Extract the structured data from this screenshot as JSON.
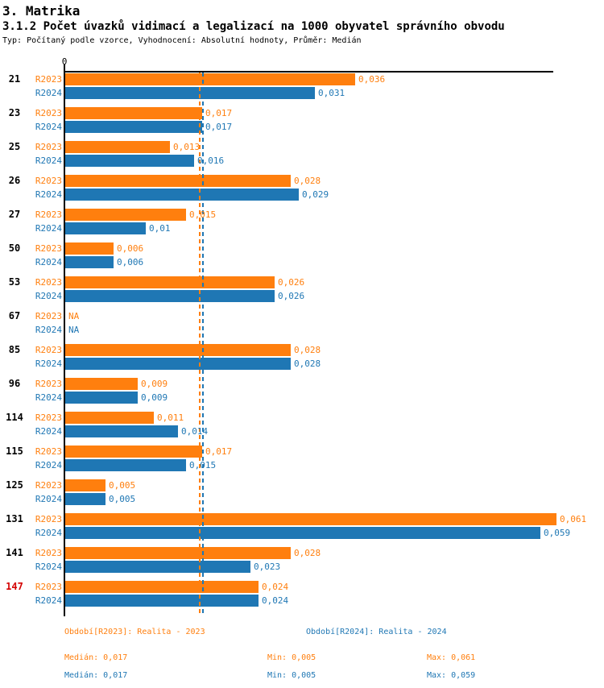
{
  "header": {
    "title": "3. Matrika",
    "subtitle": "3.1.2 Počet úvazků vidimací a legalizací na 1000 obyvatel správního obvodu",
    "meta": "Typ: Počítaný podle vzorce, Vyhodnocení: Absolutní hodnoty, Průměr: Medián"
  },
  "colors": {
    "r2023_orange": "#ff7f0e",
    "r2024_blue": "#1f77b4",
    "highlight_red": "#d40000",
    "axis_black": "#000000"
  },
  "chart_data": {
    "type": "bar",
    "orientation": "horizontal",
    "title": "3.1.2 Počet úvazků vidimací a legalizací na 1000 obyvatel správního obvodu",
    "xlim": [
      0,
      0.061
    ],
    "grid": false,
    "zero_tick_label": "0",
    "na_text": "NA",
    "series": [
      {
        "name": "R2023",
        "color": "#ff7f0e",
        "median": 0.017
      },
      {
        "name": "R2024",
        "color": "#1f77b4",
        "median": 0.017
      }
    ],
    "groups": [
      {
        "id": "21",
        "highlighted": false,
        "bars": [
          {
            "series": "R2023",
            "value": 0.036,
            "label": "0,036"
          },
          {
            "series": "R2024",
            "value": 0.031,
            "label": "0,031"
          }
        ]
      },
      {
        "id": "23",
        "highlighted": false,
        "bars": [
          {
            "series": "R2023",
            "value": 0.017,
            "label": "0,017"
          },
          {
            "series": "R2024",
            "value": 0.017,
            "label": "0,017"
          }
        ]
      },
      {
        "id": "25",
        "highlighted": false,
        "bars": [
          {
            "series": "R2023",
            "value": 0.013,
            "label": "0,013"
          },
          {
            "series": "R2024",
            "value": 0.016,
            "label": "0,016"
          }
        ]
      },
      {
        "id": "26",
        "highlighted": false,
        "bars": [
          {
            "series": "R2023",
            "value": 0.028,
            "label": "0,028"
          },
          {
            "series": "R2024",
            "value": 0.029,
            "label": "0,029"
          }
        ]
      },
      {
        "id": "27",
        "highlighted": false,
        "bars": [
          {
            "series": "R2023",
            "value": 0.015,
            "label": "0,015"
          },
          {
            "series": "R2024",
            "value": 0.01,
            "label": "0,01"
          }
        ]
      },
      {
        "id": "50",
        "highlighted": false,
        "bars": [
          {
            "series": "R2023",
            "value": 0.006,
            "label": "0,006"
          },
          {
            "series": "R2024",
            "value": 0.006,
            "label": "0,006"
          }
        ]
      },
      {
        "id": "53",
        "highlighted": false,
        "bars": [
          {
            "series": "R2023",
            "value": 0.026,
            "label": "0,026"
          },
          {
            "series": "R2024",
            "value": 0.026,
            "label": "0,026"
          }
        ]
      },
      {
        "id": "67",
        "highlighted": false,
        "bars": [
          {
            "series": "R2023",
            "value": null,
            "label": "NA"
          },
          {
            "series": "R2024",
            "value": null,
            "label": "NA"
          }
        ]
      },
      {
        "id": "85",
        "highlighted": false,
        "bars": [
          {
            "series": "R2023",
            "value": 0.028,
            "label": "0,028"
          },
          {
            "series": "R2024",
            "value": 0.028,
            "label": "0,028"
          }
        ]
      },
      {
        "id": "96",
        "highlighted": false,
        "bars": [
          {
            "series": "R2023",
            "value": 0.009,
            "label": "0,009"
          },
          {
            "series": "R2024",
            "value": 0.009,
            "label": "0,009"
          }
        ]
      },
      {
        "id": "114",
        "highlighted": false,
        "bars": [
          {
            "series": "R2023",
            "value": 0.011,
            "label": "0,011"
          },
          {
            "series": "R2024",
            "value": 0.014,
            "label": "0,014"
          }
        ]
      },
      {
        "id": "115",
        "highlighted": false,
        "bars": [
          {
            "series": "R2023",
            "value": 0.017,
            "label": "0,017"
          },
          {
            "series": "R2024",
            "value": 0.015,
            "label": "0,015"
          }
        ]
      },
      {
        "id": "125",
        "highlighted": false,
        "bars": [
          {
            "series": "R2023",
            "value": 0.005,
            "label": "0,005"
          },
          {
            "series": "R2024",
            "value": 0.005,
            "label": "0,005"
          }
        ]
      },
      {
        "id": "131",
        "highlighted": false,
        "bars": [
          {
            "series": "R2023",
            "value": 0.061,
            "label": "0,061"
          },
          {
            "series": "R2024",
            "value": 0.059,
            "label": "0,059"
          }
        ]
      },
      {
        "id": "141",
        "highlighted": false,
        "bars": [
          {
            "series": "R2023",
            "value": 0.028,
            "label": "0,028"
          },
          {
            "series": "R2024",
            "value": 0.023,
            "label": "0,023"
          }
        ]
      },
      {
        "id": "147",
        "highlighted": true,
        "bars": [
          {
            "series": "R2023",
            "value": 0.024,
            "label": "0,024"
          },
          {
            "series": "R2024",
            "value": 0.024,
            "label": "0,024"
          }
        ]
      }
    ]
  },
  "footer": {
    "period_r2023": "Období[R2023]: Realita - 2023",
    "period_r2024": "Období[R2024]: Realita - 2024",
    "stats_r2023": {
      "median": "Medián: 0,017",
      "min": "Min: 0,005",
      "max": "Max: 0,061"
    },
    "stats_r2024": {
      "median": "Medián: 0,017",
      "min": "Min: 0,005",
      "max": "Max: 0,059"
    }
  }
}
